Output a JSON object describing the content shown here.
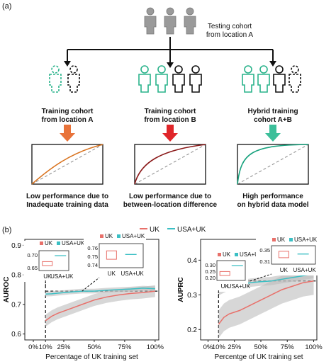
{
  "panel_a": {
    "label": "(a)",
    "testing": {
      "line1": "Testing cohort",
      "line2": "from location A"
    },
    "cohorts": [
      {
        "line1": "Training cohort",
        "line2": "from location A",
        "caption1": "Low performance due to",
        "caption2": "Inadequate training data",
        "arrow_color": "#e8733a",
        "curve_color": "#d9731f"
      },
      {
        "line1": "Training cohort",
        "line2": "from location B",
        "caption1": "Low performance due to",
        "caption2": "between-location difference",
        "arrow_color": "#e0262a",
        "curve_color": "#8b1a1a"
      },
      {
        "line1": "Hybrid training",
        "line2": "cohort A+B",
        "caption1": "High performance",
        "caption2": "on hybrid data model",
        "arrow_color": "#3cbf9a",
        "curve_color": "#1aa37f"
      }
    ],
    "colors": {
      "location_a": "#2ab38b",
      "location_b": "#111111",
      "testing": "#9a9a9a"
    }
  },
  "panel_b": {
    "label": "(b)",
    "legend": {
      "uk": "UK",
      "usa_uk": "USA+UK",
      "uk_color": "#e8706a",
      "usa_uk_color": "#3bbfc4"
    },
    "inset_legend": {
      "uk": "UK",
      "usa_uk": "USA+UK"
    }
  },
  "chart_data": [
    {
      "type": "line",
      "ylabel": "AUROC",
      "xlabel": "Percentage of UK training set",
      "x_ticks": [
        "0%",
        "10%",
        "25%",
        "50%",
        "75%",
        "100%"
      ],
      "y_ticks": [
        "0.6",
        "0.7",
        "0.8",
        "0.9"
      ],
      "ylim": [
        0.58,
        0.92
      ],
      "series": [
        {
          "name": "UK",
          "x": [
            10,
            15,
            20,
            30,
            40,
            50,
            60,
            70,
            80,
            90,
            100
          ],
          "values": [
            0.645,
            0.66,
            0.67,
            0.685,
            0.7,
            0.715,
            0.725,
            0.732,
            0.737,
            0.74,
            0.745
          ]
        },
        {
          "name": "USA+UK",
          "x": [
            10,
            15,
            20,
            30,
            40,
            50,
            60,
            70,
            80,
            90,
            100
          ],
          "values": [
            0.735,
            0.736,
            0.738,
            0.742,
            0.745,
            0.745,
            0.748,
            0.75,
            0.752,
            0.755,
            0.753
          ]
        }
      ],
      "reference_line": 0.745,
      "insets": [
        {
          "y_ticks": [
            "0.70",
            "0.65"
          ],
          "labels": [
            "UK",
            "USA+UK"
          ]
        },
        {
          "y_ticks": [
            "0.76",
            "0.75",
            "0.74"
          ],
          "labels": [
            "UK",
            "USA+UK"
          ]
        }
      ]
    },
    {
      "type": "line",
      "ylabel": "AUPRC",
      "xlabel": "Percentge of UK training set",
      "x_ticks": [
        "0%",
        "10%",
        "25%",
        "50%",
        "75%",
        "100%"
      ],
      "y_ticks": [
        "0.2",
        "0.3",
        "0.4"
      ],
      "ylim": [
        0.17,
        0.46
      ],
      "series": [
        {
          "name": "UK",
          "x": [
            10,
            15,
            20,
            30,
            40,
            50,
            60,
            70,
            80,
            90,
            100
          ],
          "values": [
            0.215,
            0.235,
            0.245,
            0.255,
            0.27,
            0.285,
            0.3,
            0.315,
            0.325,
            0.335,
            0.34
          ]
        },
        {
          "name": "USA+UK",
          "x": [
            10,
            15,
            20,
            30,
            40,
            50,
            60,
            70,
            80,
            90,
            100
          ],
          "values": [
            0.31,
            0.318,
            0.325,
            0.33,
            0.335,
            0.338,
            0.34,
            0.345,
            0.35,
            0.355,
            0.36
          ]
        }
      ],
      "reference_line": 0.34,
      "insets": [
        {
          "y_ticks": [
            "0.30",
            "0.25",
            "0.20"
          ],
          "labels": [
            "UK",
            "USA+UK"
          ]
        },
        {
          "y_ticks": [
            "0.35",
            "0.31"
          ],
          "labels": [
            "UK",
            "USA+UK"
          ]
        }
      ]
    }
  ]
}
